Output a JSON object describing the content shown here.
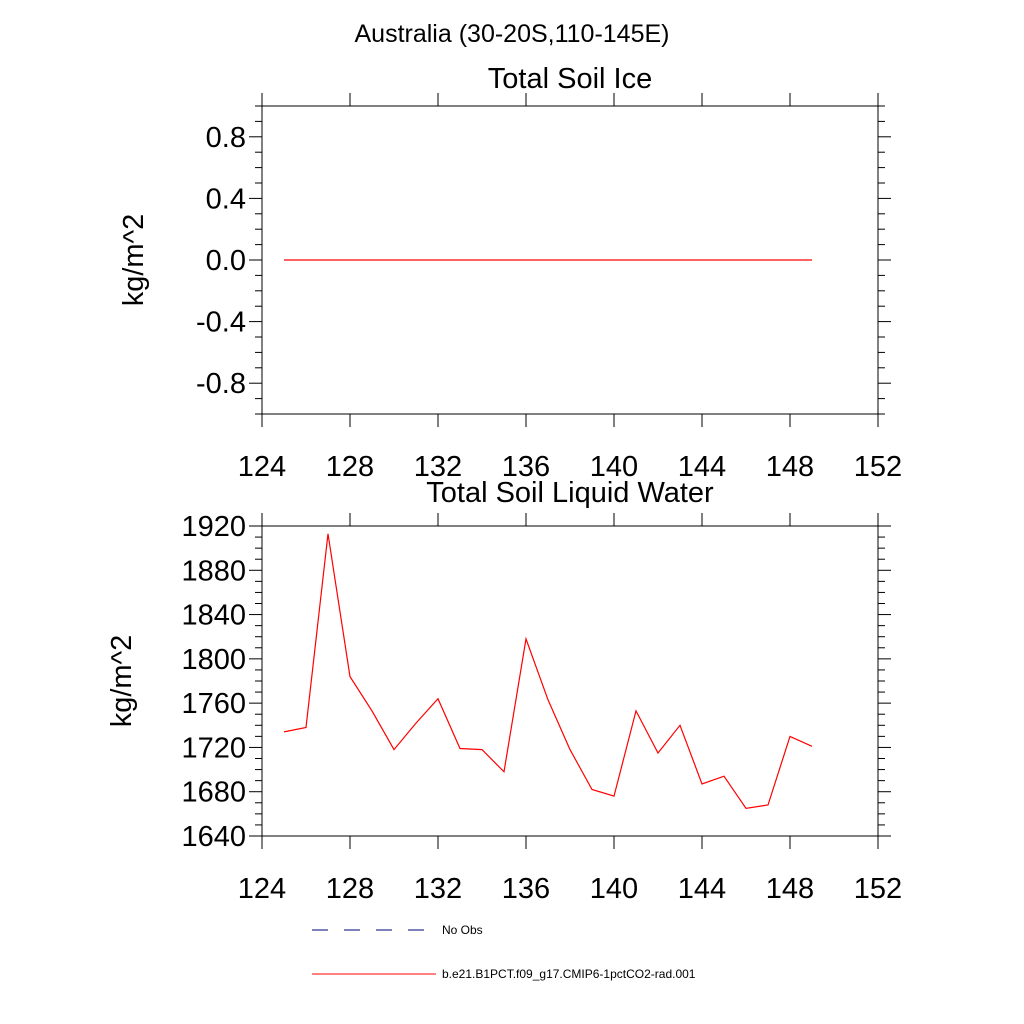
{
  "figure": {
    "title": "Australia (30-20S,110-145E)"
  },
  "chart_data": [
    {
      "type": "line",
      "title": "Total Soil Ice",
      "ylabel": "kg/m^2",
      "xlim": [
        124,
        152
      ],
      "ylim": [
        -1.0,
        1.0
      ],
      "xticks": [
        "124",
        "128",
        "132",
        "136",
        "140",
        "144",
        "148",
        "152"
      ],
      "yticks": [
        "-0.8",
        "-0.4",
        "0.0",
        "0.4",
        "0.8"
      ],
      "grid": false,
      "series": [
        {
          "color": "#ff0000",
          "x": [
            125,
            126,
            127,
            128,
            129,
            130,
            131,
            132,
            133,
            134,
            135,
            136,
            137,
            138,
            139,
            140,
            141,
            142,
            143,
            144,
            145,
            146,
            147,
            148,
            149
          ],
          "y": [
            0,
            0,
            0,
            0,
            0,
            0,
            0,
            0,
            0,
            0,
            0,
            0,
            0,
            0,
            0,
            0,
            0,
            0,
            0,
            0,
            0,
            0,
            0,
            0,
            0
          ]
        }
      ]
    },
    {
      "type": "line",
      "title": "Total Soil Liquid Water",
      "ylabel": "kg/m^2",
      "xlim": [
        124,
        152
      ],
      "ylim": [
        1640,
        1920
      ],
      "xticks": [
        "124",
        "128",
        "132",
        "136",
        "140",
        "144",
        "148",
        "152"
      ],
      "yticks": [
        "1640",
        "1680",
        "1720",
        "1760",
        "1800",
        "1840",
        "1880",
        "1920"
      ],
      "grid": false,
      "series": [
        {
          "color": "#ff0000",
          "x": [
            125,
            126,
            127,
            128,
            129,
            130,
            131,
            132,
            133,
            134,
            135,
            136,
            137,
            138,
            139,
            140,
            141,
            142,
            143,
            144,
            145,
            146,
            147,
            148,
            149
          ],
          "y": [
            1734,
            1738,
            1913,
            1784,
            1753,
            1718,
            1742,
            1764,
            1719,
            1718,
            1698,
            1818,
            1763,
            1718,
            1682,
            1676,
            1753,
            1715,
            1740,
            1687,
            1694,
            1665,
            1668,
            1730,
            1721
          ]
        }
      ]
    }
  ],
  "legend": {
    "placement": "bottom",
    "items": [
      {
        "label": "No Obs",
        "color": "#000080",
        "style": "dashed"
      },
      {
        "label": "b.e21.B1PCT.f09_g17.CMIP6-1pctCO2-rad.001",
        "color": "#ff0000",
        "style": "solid"
      }
    ]
  }
}
